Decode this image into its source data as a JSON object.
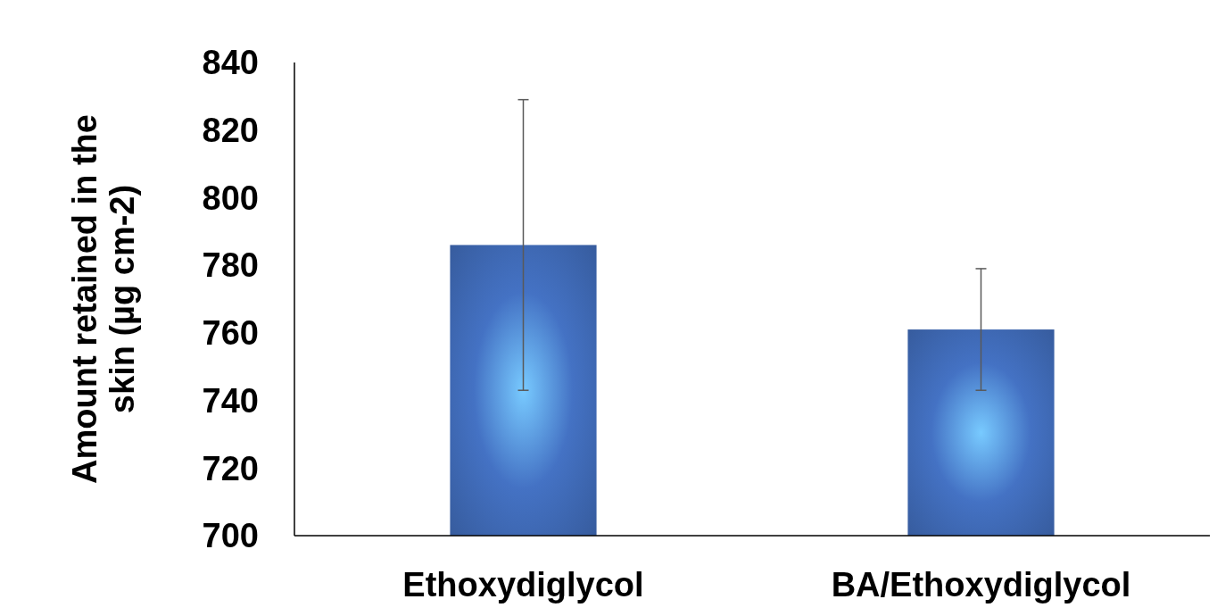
{
  "chart_data": {
    "type": "bar",
    "ylabel": "Amount retained in the skin (µg cm-2)",
    "categories": [
      "Ethoxydiglycol",
      "BA/Ethoxydiglycol"
    ],
    "values": [
      786,
      761
    ],
    "errors": [
      [
        743,
        829
      ],
      [
        743,
        779
      ]
    ],
    "color": "#4472c4",
    "ylim": [
      700,
      840
    ],
    "yticks": [
      700,
      720,
      740,
      760,
      780,
      800,
      820,
      840
    ],
    "grid": false
  }
}
